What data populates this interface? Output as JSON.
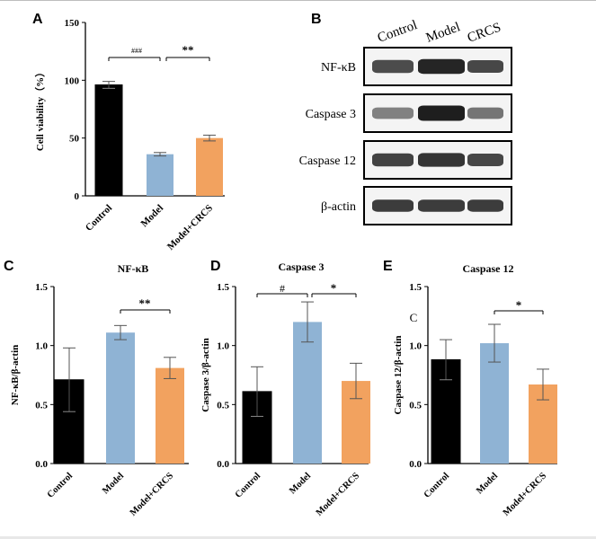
{
  "colors": {
    "control": "#000000",
    "model": "#8fb3d4",
    "crcs": "#f2a25f",
    "axis": "#000000",
    "blot_dark": "#1e1e1e"
  },
  "panel_a": {
    "letter": "A",
    "ylabel": "Cell viability（%）",
    "sig_left": "###",
    "sig_right": "**"
  },
  "panel_b": {
    "letter": "B",
    "lanes": [
      "Control",
      "Model",
      "CRCS"
    ],
    "rows": [
      {
        "label": "NF-κB",
        "intensity": [
          0.78,
          0.95,
          0.8
        ],
        "thickness": [
          0.55,
          0.7,
          0.5
        ]
      },
      {
        "label": "Caspase 3",
        "intensity": [
          0.55,
          0.98,
          0.6
        ],
        "thickness": [
          0.4,
          0.75,
          0.4
        ]
      },
      {
        "label": "Caspase 12",
        "intensity": [
          0.82,
          0.88,
          0.8
        ],
        "thickness": [
          0.55,
          0.6,
          0.5
        ]
      },
      {
        "label": "β-actin",
        "intensity": [
          0.85,
          0.85,
          0.85
        ],
        "thickness": [
          0.45,
          0.45,
          0.45
        ]
      }
    ]
  },
  "panel_c": {
    "letter": "C",
    "title": "NF-κB",
    "ylabel": "NF-κB/β-actin",
    "sig": "**"
  },
  "panel_d": {
    "letter": "D",
    "title": "Caspase 3",
    "ylabel": "Caspase 3/β-actin",
    "sig_left": "#",
    "sig_right": "*"
  },
  "panel_e": {
    "letter": "E",
    "title": "Caspase 12",
    "ylabel": "Caspase 12/β-actin",
    "sig": "*",
    "stray_label": "C"
  },
  "chart_data": [
    {
      "id": "A",
      "type": "bar",
      "title": "",
      "xlabel": "",
      "ylabel": "Cell viability（%）",
      "categories": [
        "Control",
        "Model",
        "Model+CRCS"
      ],
      "values": [
        96,
        36,
        50
      ],
      "errors": [
        3,
        1.5,
        2.5
      ],
      "ylim": [
        0,
        150
      ],
      "yticks": [
        "0",
        "50",
        "100",
        "150"
      ]
    },
    {
      "id": "C",
      "type": "bar",
      "title": "NF-κB",
      "xlabel": "",
      "ylabel": "NF-κB/β-actin",
      "categories": [
        "Control",
        "Model",
        "Model+CRCS"
      ],
      "values": [
        0.71,
        1.11,
        0.81
      ],
      "errors": [
        0.27,
        0.06,
        0.09
      ],
      "ylim": [
        0,
        1.5
      ],
      "yticks": [
        "0.0",
        "0.5",
        "1.0",
        "1.5"
      ]
    },
    {
      "id": "D",
      "type": "bar",
      "title": "Caspase 3",
      "xlabel": "",
      "ylabel": "Caspase 3/β-actin",
      "categories": [
        "Control",
        "Model",
        "Model+CRCS"
      ],
      "values": [
        0.61,
        1.2,
        0.7
      ],
      "errors": [
        0.21,
        0.17,
        0.15
      ],
      "ylim": [
        0,
        1.5
      ],
      "yticks": [
        "0.0",
        "0.5",
        "1.0",
        "1.5"
      ]
    },
    {
      "id": "E",
      "type": "bar",
      "title": "Caspase 12",
      "xlabel": "",
      "ylabel": "Caspase 12/β-actin",
      "categories": [
        "Control",
        "Model",
        "Model+CRCS"
      ],
      "values": [
        0.88,
        1.02,
        0.67
      ],
      "errors": [
        0.17,
        0.16,
        0.13
      ],
      "ylim": [
        0,
        1.5
      ],
      "yticks": [
        "0.0",
        "0.5",
        "1.0",
        "1.5"
      ]
    }
  ]
}
